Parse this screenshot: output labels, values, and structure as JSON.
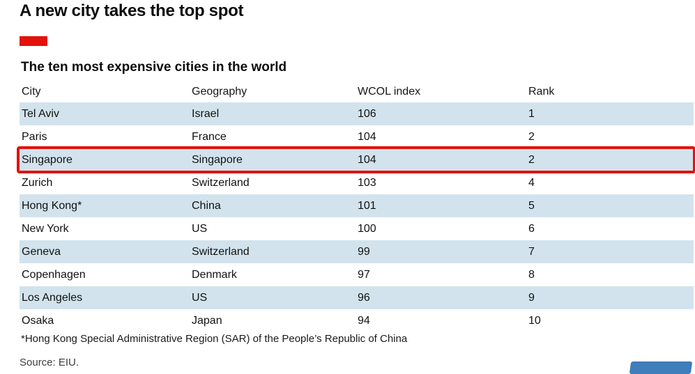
{
  "header": {
    "title": "A new city takes the top spot",
    "subtitle": "The ten most expensive cities in the world"
  },
  "table": {
    "columns": [
      "City",
      "Geography",
      "WCOL index",
      "Rank"
    ],
    "rows": [
      {
        "city": "Tel Aviv",
        "geography": "Israel",
        "wcol": "106",
        "rank": "1",
        "highlight": false
      },
      {
        "city": "Paris",
        "geography": "France",
        "wcol": "104",
        "rank": "2",
        "highlight": false
      },
      {
        "city": "Singapore",
        "geography": "Singapore",
        "wcol": "104",
        "rank": "2",
        "highlight": true
      },
      {
        "city": "Zurich",
        "geography": "Switzerland",
        "wcol": "103",
        "rank": "4",
        "highlight": false
      },
      {
        "city": "Hong Kong*",
        "geography": "China",
        "wcol": "101",
        "rank": "5",
        "highlight": false
      },
      {
        "city": "New York",
        "geography": "US",
        "wcol": "100",
        "rank": "6",
        "highlight": false
      },
      {
        "city": "Geneva",
        "geography": "Switzerland",
        "wcol": "99",
        "rank": "7",
        "highlight": false
      },
      {
        "city": "Copenhagen",
        "geography": "Denmark",
        "wcol": "97",
        "rank": "8",
        "highlight": false
      },
      {
        "city": "Los Angeles",
        "geography": "US",
        "wcol": "96",
        "rank": "9",
        "highlight": false
      },
      {
        "city": "Osaka",
        "geography": "Japan",
        "wcol": "94",
        "rank": "10",
        "highlight": false
      }
    ]
  },
  "footnote": "*Hong Kong Special Administrative Region (SAR) of the People’s Republic of China",
  "source": "Source: EIU.",
  "colors": {
    "accent_red": "#e3120b",
    "row_stripe_blue": "#d2e3ed",
    "watermark_blue": "#3f7dbb"
  },
  "chart_data": {
    "type": "table",
    "title": "A new city takes the top spot",
    "subtitle": "The ten most expensive cities in the world",
    "columns": [
      "City",
      "Geography",
      "WCOL index",
      "Rank"
    ],
    "rows": [
      [
        "Tel Aviv",
        "Israel",
        106,
        1
      ],
      [
        "Paris",
        "France",
        104,
        2
      ],
      [
        "Singapore",
        "Singapore",
        104,
        2
      ],
      [
        "Zurich",
        "Switzerland",
        103,
        4
      ],
      [
        "Hong Kong*",
        "China",
        101,
        5
      ],
      [
        "New York",
        "US",
        100,
        6
      ],
      [
        "Geneva",
        "Switzerland",
        99,
        7
      ],
      [
        "Copenhagen",
        "Denmark",
        97,
        8
      ],
      [
        "Los Angeles",
        "US",
        96,
        9
      ],
      [
        "Osaka",
        "Japan",
        94,
        10
      ]
    ],
    "highlighted_row": "Singapore",
    "footnote": "*Hong Kong Special Administrative Region (SAR) of the People’s Republic of China",
    "source": "Source: EIU."
  }
}
